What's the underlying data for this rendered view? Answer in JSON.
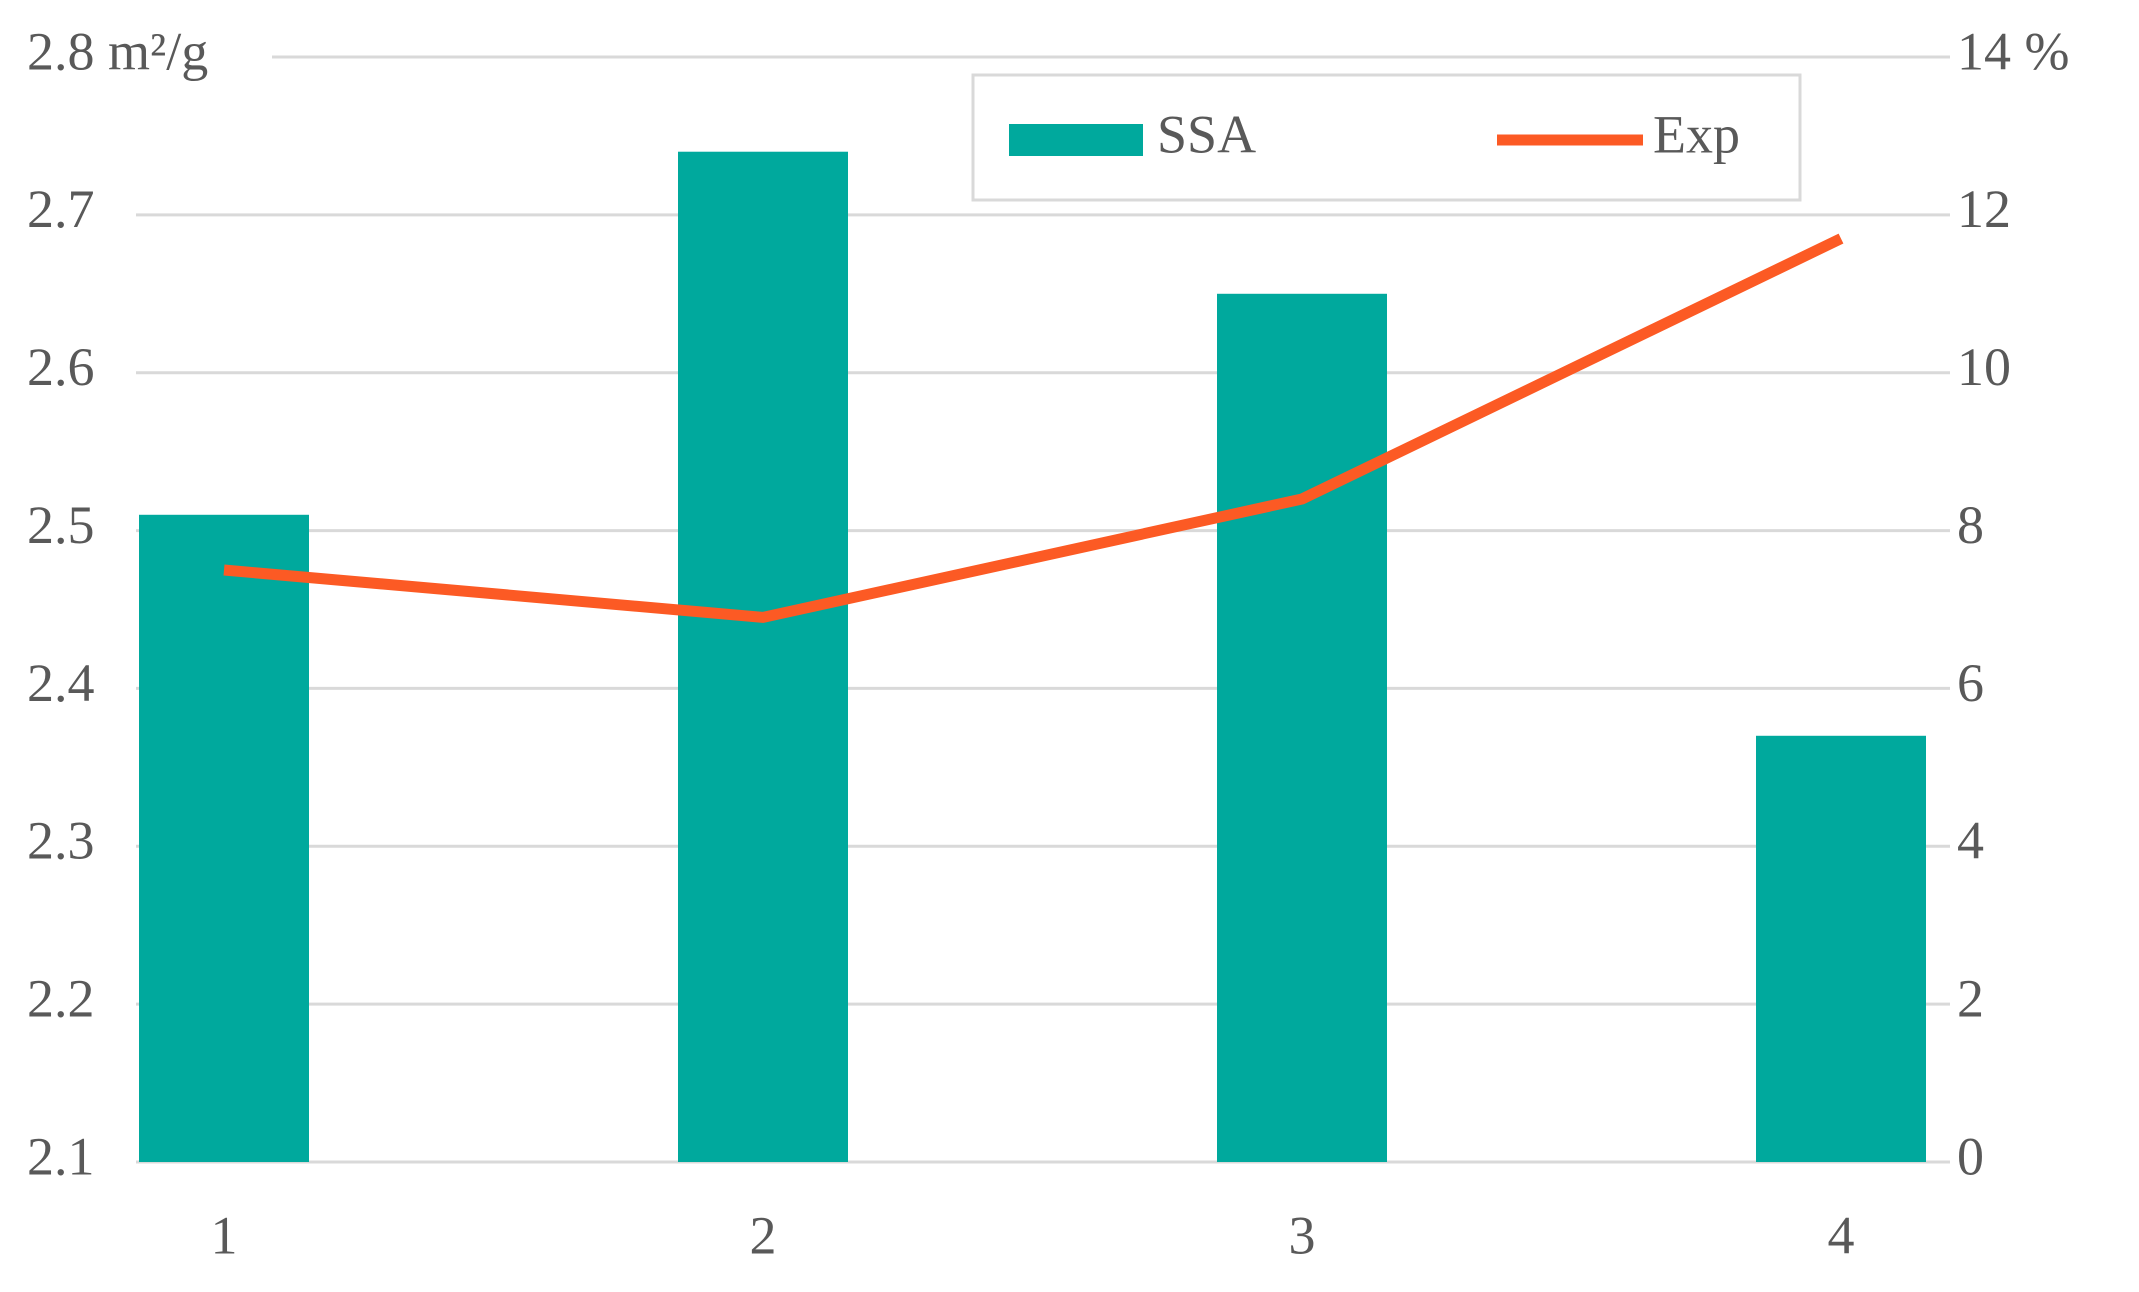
{
  "chart_data": {
    "type": "bar",
    "categories": [
      "1",
      "2",
      "3",
      "4"
    ],
    "series": [
      {
        "name": "SSA",
        "type": "bar",
        "color": "#00a99d",
        "values": [
          2.51,
          2.74,
          2.65,
          2.37
        ]
      },
      {
        "name": "Exp",
        "type": "line",
        "axis": "y2",
        "color": "#fc5a24",
        "values": [
          7.5,
          6.9,
          8.4,
          11.7
        ]
      }
    ],
    "ylim": [
      2.1,
      2.8
    ],
    "yticks": [
      2.1,
      2.2,
      2.3,
      2.4,
      2.5,
      2.6,
      2.7,
      {
        "value": 2.8,
        "label": "2.8 m²/g"
      }
    ],
    "y2lim": [
      0,
      14
    ],
    "y2ticks": [
      0,
      2,
      4,
      6,
      8,
      10,
      12,
      {
        "value": 14,
        "label": "14 %"
      }
    ],
    "grid": true
  }
}
